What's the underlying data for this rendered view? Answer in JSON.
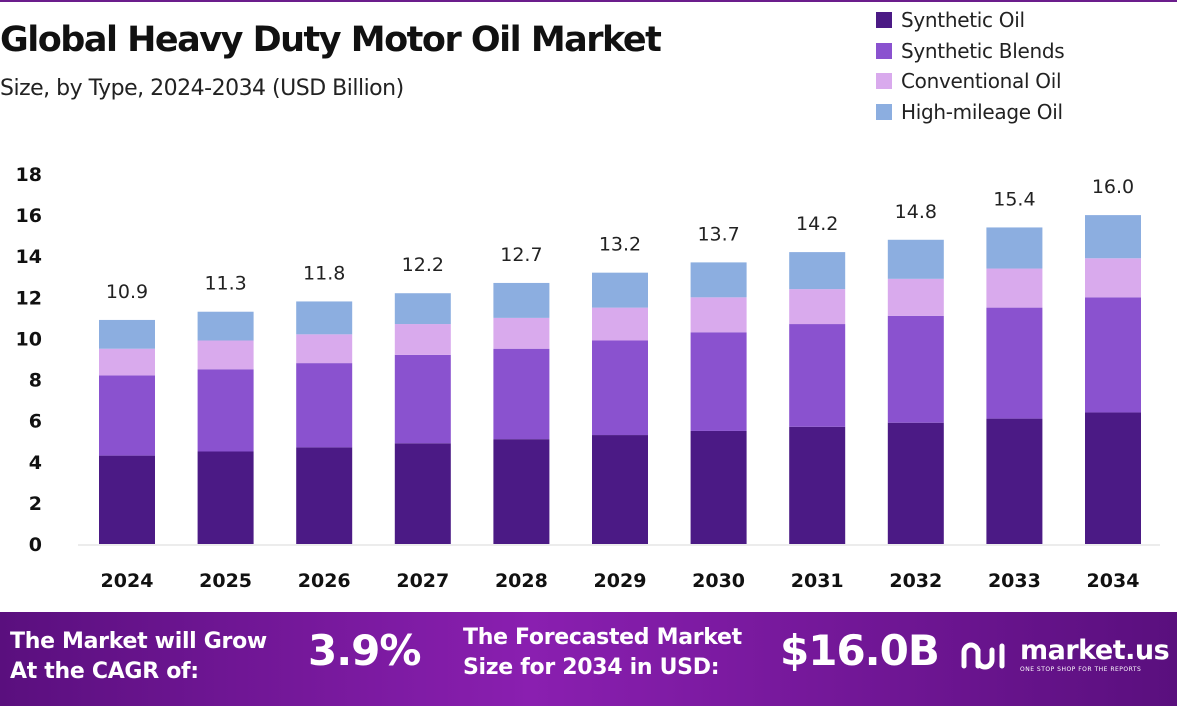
{
  "header": {
    "title": "Global Heavy Duty Motor Oil Market",
    "subtitle": "Size, by Type, 2024-2034 (USD Billion)"
  },
  "colors": {
    "synthetic_oil": "#4b1a85",
    "synthetic_blends": "#8a52cf",
    "conventional_oil": "#d9aaed",
    "high_mileage_oil": "#8caee0",
    "banner_start": "#5a0f7e",
    "banner_end": "#8a1fb0"
  },
  "chart_data": {
    "type": "bar",
    "stacked": true,
    "title": "Global Heavy Duty Motor Oil Market",
    "subtitle": "Size, by Type, 2024-2034 (USD Billion)",
    "categories": [
      "2024",
      "2025",
      "2026",
      "2027",
      "2028",
      "2029",
      "2030",
      "2031",
      "2032",
      "2033",
      "2034"
    ],
    "series": [
      {
        "name": "Synthetic Oil",
        "values": [
          4.3,
          4.5,
          4.7,
          4.9,
          5.1,
          5.3,
          5.5,
          5.7,
          5.9,
          6.1,
          6.4
        ]
      },
      {
        "name": "Synthetic Blends",
        "values": [
          3.9,
          4.0,
          4.1,
          4.3,
          4.4,
          4.6,
          4.8,
          5.0,
          5.2,
          5.4,
          5.6
        ]
      },
      {
        "name": "Conventional Oil",
        "values": [
          1.3,
          1.4,
          1.4,
          1.5,
          1.5,
          1.6,
          1.7,
          1.7,
          1.8,
          1.9,
          1.9
        ]
      },
      {
        "name": "High-mileage Oil",
        "values": [
          1.4,
          1.4,
          1.6,
          1.5,
          1.7,
          1.7,
          1.7,
          1.8,
          1.9,
          2.0,
          2.1
        ]
      }
    ],
    "totals": [
      "10.9",
      "11.3",
      "11.8",
      "12.2",
      "12.7",
      "13.2",
      "13.7",
      "14.2",
      "14.8",
      "15.4",
      "16.0"
    ],
    "ylim": [
      0,
      18
    ],
    "yticks": [
      0,
      2,
      4,
      6,
      8,
      10,
      12,
      14,
      16,
      18
    ],
    "xlabel": "",
    "ylabel": "",
    "grid": false,
    "legend_position": "top-right"
  },
  "banner": {
    "cagr_label_line1": "The Market will Grow",
    "cagr_label_line2": "At the CAGR of:",
    "cagr_value": "3.9%",
    "size_label_line1": "The Forecasted Market",
    "size_label_line2": "Size for 2034 in USD:",
    "size_value": "$16.0B",
    "brand_name": "market.us",
    "brand_tagline": "ONE STOP SHOP FOR THE REPORTS"
  }
}
